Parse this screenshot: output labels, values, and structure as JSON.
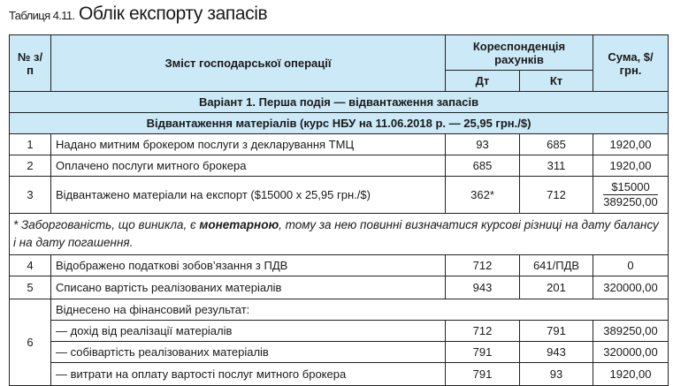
{
  "title": {
    "label": "Таблиця 4.11.",
    "name": "Облік експорту запасів"
  },
  "header": {
    "num": "№ з/п",
    "content": "Зміст господарської операції",
    "correspondence": "Кореспонденція рахунків",
    "debit": "Дт",
    "credit": "Кт",
    "sum": "Сума, $/грн."
  },
  "variant": "Варіант 1. Перша подія — відвантаження запасів",
  "section": "Відвантаження матеріалів (курс НБУ на 11.06.2018 р. — 25,95 грн./$)",
  "rows": [
    {
      "n": "1",
      "text": "Надано митним брокером послуги з декларування ТМЦ",
      "dt": "93",
      "kt": "685",
      "sum": "1920,00"
    },
    {
      "n": "2",
      "text": "Оплачено послуги митного брокера",
      "dt": "685",
      "kt": "311",
      "sum": "1920,00"
    },
    {
      "n": "3",
      "text": "Відвантажено матеріали на експорт ($15000 x 25,95 грн./$)",
      "dt": "362*",
      "kt": "712",
      "sum_top": "$15000",
      "sum_bottom": "389250,00"
    },
    {
      "n": "4",
      "text": "Відображено податкові зобов’язання з ПДВ",
      "dt": "712",
      "kt": "641/ПДВ",
      "sum": "0"
    },
    {
      "n": "5",
      "text": "Списано вартість реалізованих матеріалів",
      "dt": "943",
      "kt": "201",
      "sum": "320000,00"
    }
  ],
  "note": {
    "before": "* Заборгованість, що виникла, є ",
    "bold": "монетарною",
    "after": ", тому за нею повинні визначатися курсові різниці на дату балансу і на дату погашення."
  },
  "row6": {
    "n": "6",
    "heading": "Віднесено на фінансовий результат:",
    "items": [
      {
        "text": "— дохід від реалізації матеріалів",
        "dt": "712",
        "kt": "791",
        "sum": "389250,00"
      },
      {
        "text": "— собівартість реалізованих матеріалів",
        "dt": "791",
        "kt": "943",
        "sum": "320000,00"
      },
      {
        "text": "— витрати на оплату вартості послуг митного брокера",
        "dt": "791",
        "kt": "93",
        "sum": "1920,00"
      }
    ]
  },
  "colors": {
    "header_bg": "#cce9f7",
    "border": "#222222"
  }
}
